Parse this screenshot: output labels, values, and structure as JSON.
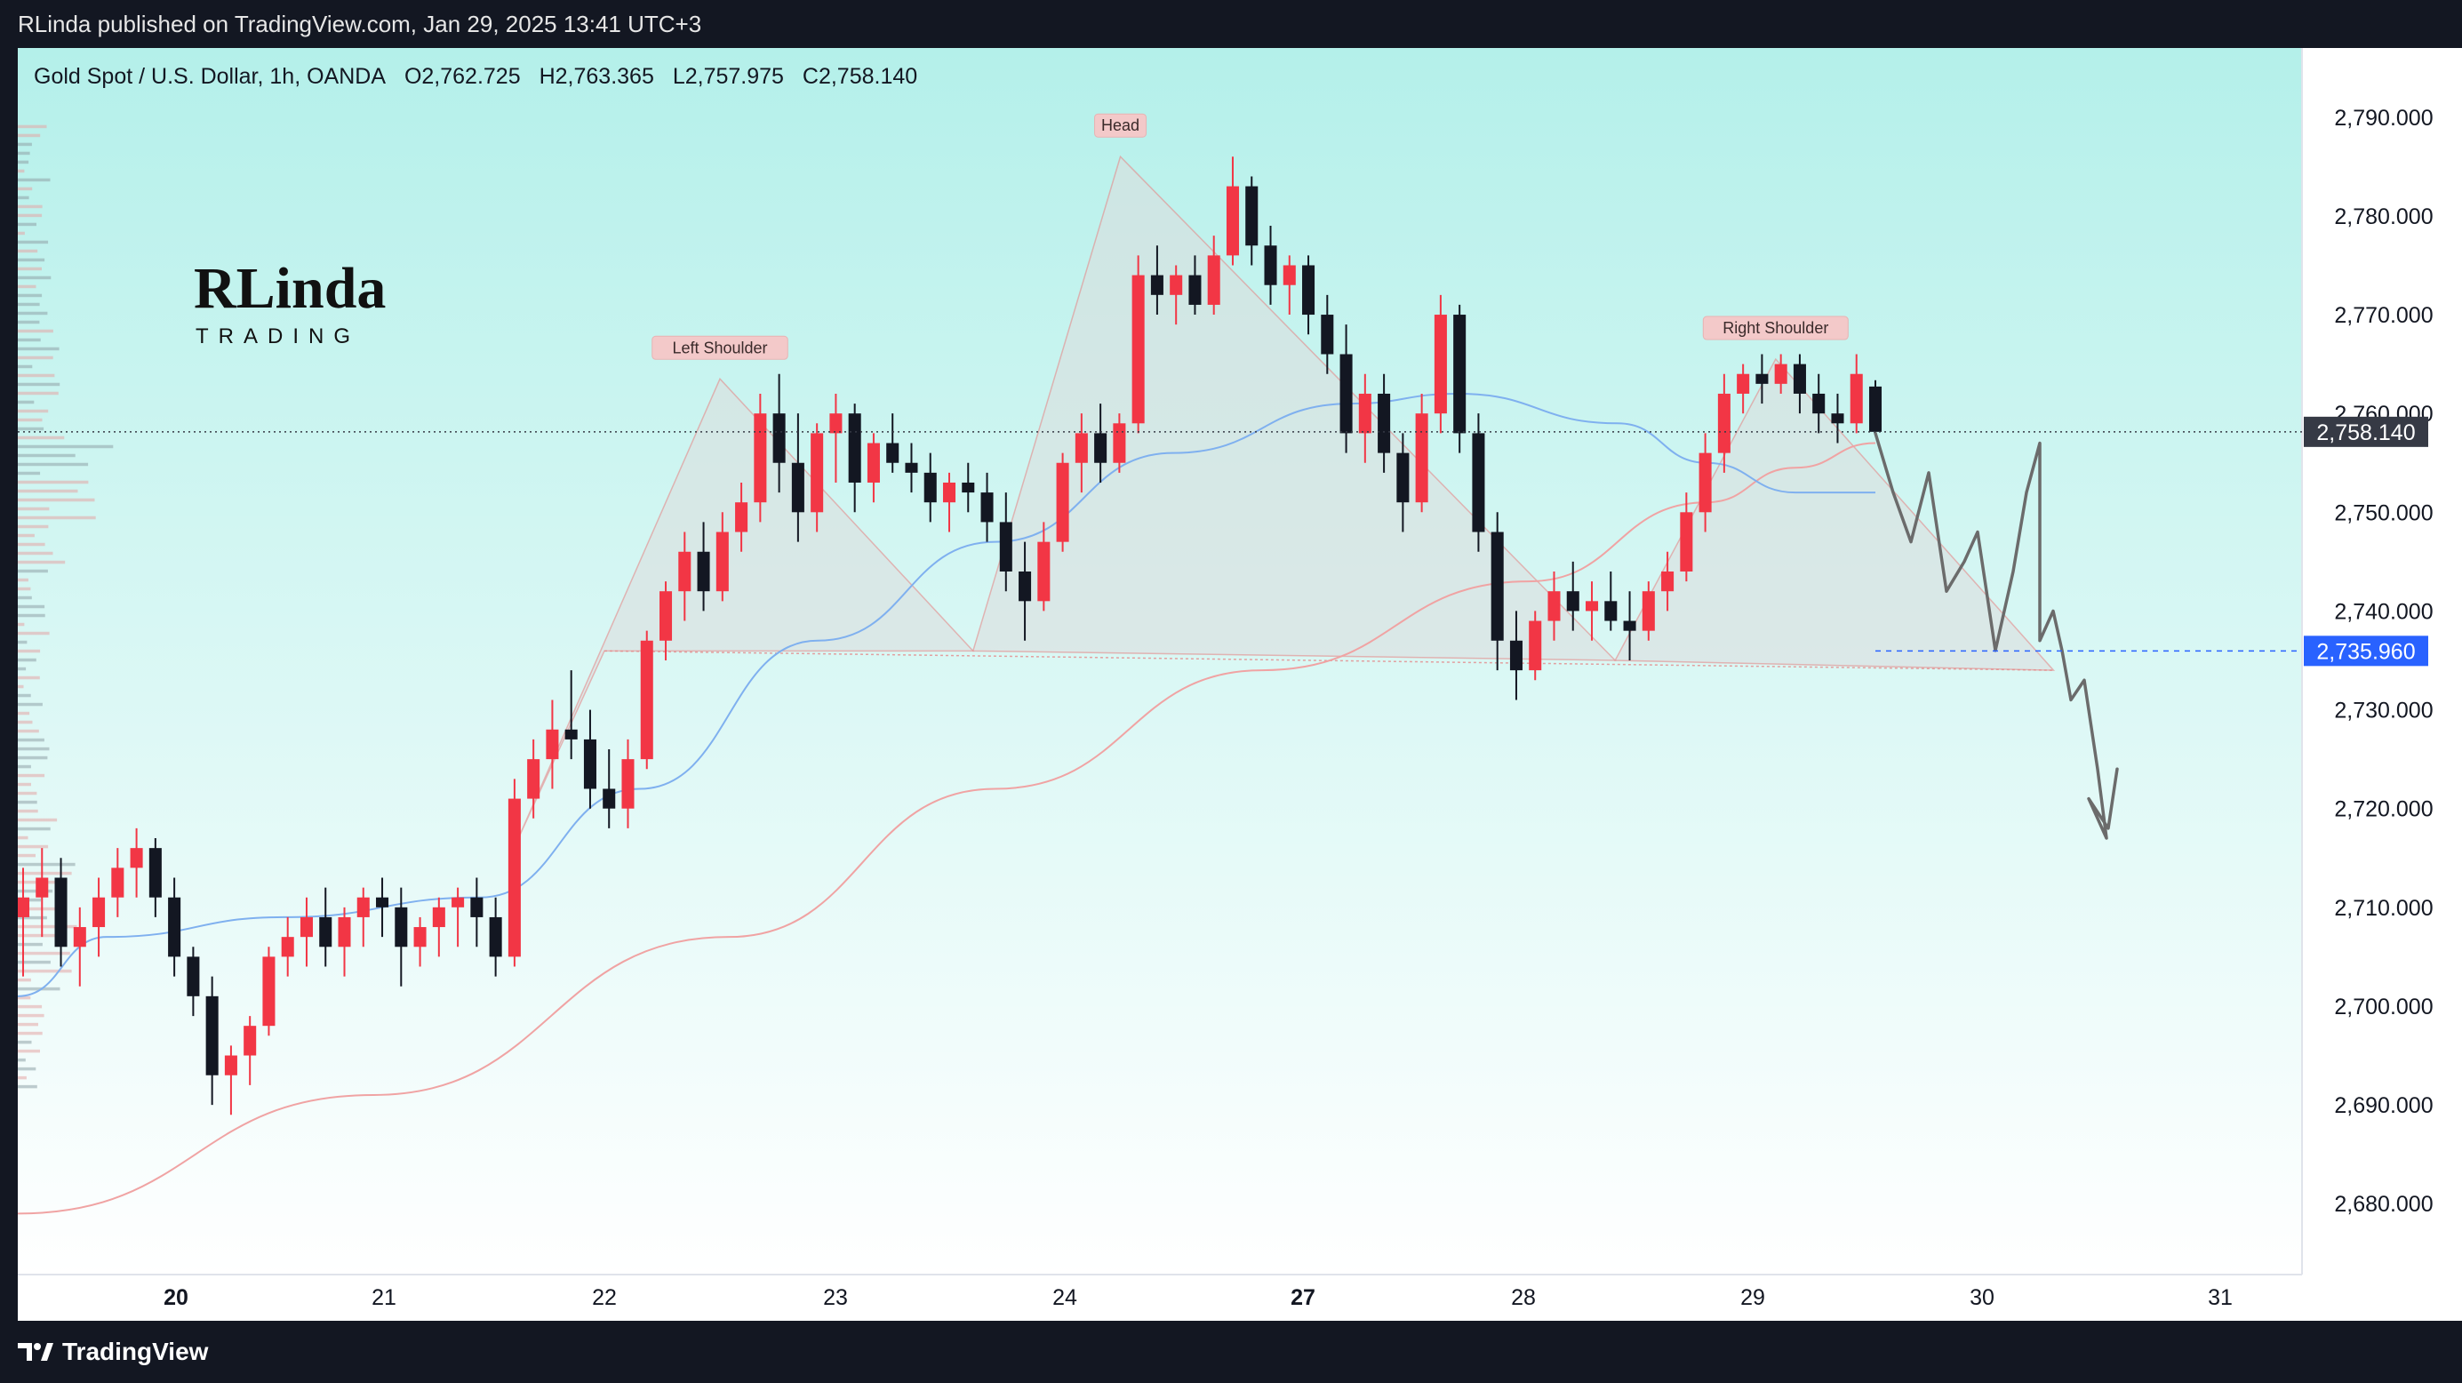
{
  "header": {
    "publisher": "RLinda published on TradingView.com, Jan 29, 2025 13:41 UTC+3"
  },
  "legend": {
    "symbol": "Gold Spot / U.S. Dollar, 1h, OANDA",
    "open": "O2,762.725",
    "high": "H2,763.365",
    "low": "L2,757.975",
    "close": "C2,758.140"
  },
  "brand": {
    "line1": "RLinda",
    "line2": "TRADING"
  },
  "footer": {
    "logo_text": "TradingView"
  },
  "colors": {
    "background_top": "#b4f0ea",
    "background_bottom": "#ffffff",
    "up": "#f23645",
    "down": "#131722",
    "ma_fast": "#7fb0ef",
    "ma_slow": "#f0a3a3",
    "pattern_fill": "#dcdcdc",
    "pattern_stroke": "#e58b8b",
    "forecast": "#6b6b6b",
    "last_price_tag": "#363a45",
    "neckline_tag": "#2962ff"
  },
  "chart_data": {
    "type": "candlestick",
    "pattern": "head-and-shoulders",
    "ylim": [
      2673,
      2797
    ],
    "yticks": [
      2680,
      2690,
      2700,
      2710,
      2720,
      2730,
      2740,
      2750,
      2760,
      2770,
      2780,
      2790
    ],
    "ytick_labels": [
      "2,680.000",
      "2,690.000",
      "2,700.000",
      "2,710.000",
      "2,720.000",
      "2,730.000",
      "2,740.000",
      "2,750.000",
      "2,760.000",
      "2,770.000",
      "2,780.000",
      "2,790.000"
    ],
    "x_dates": [
      "20",
      "21",
      "22",
      "23",
      "24",
      "27",
      "28",
      "29",
      "30",
      "31"
    ],
    "x_bold": [
      "20",
      "27"
    ],
    "last_price": 2758.14,
    "last_price_label": "2,758.140",
    "neckline": 2735.96,
    "neckline_label": "2,735.960",
    "annotations": [
      "Left Shoulder",
      "Head",
      "Right Shoulder"
    ],
    "pattern_points": [
      {
        "label": "",
        "x": "21.6",
        "y": 2716.5
      },
      {
        "label": "Left Shoulder",
        "x": "22.5",
        "y": 2763.5
      },
      {
        "label": "",
        "x": "23.6",
        "y": 2735.96
      },
      {
        "label": "Head",
        "x": "24.7",
        "y": 2786.0
      },
      {
        "label": "",
        "x": "28.4",
        "y": 2735.0
      },
      {
        "label": "Right Shoulder",
        "x": "29.1",
        "y": 2765.5
      },
      {
        "label": "",
        "x": "30.3",
        "y": 2734.0
      }
    ],
    "ohlc": [
      [
        2709,
        2714,
        2703,
        2711
      ],
      [
        2711,
        2716,
        2707,
        2713
      ],
      [
        2713,
        2715,
        2704,
        2706
      ],
      [
        2706,
        2710,
        2702,
        2708
      ],
      [
        2708,
        2713,
        2705,
        2711
      ],
      [
        2711,
        2716,
        2709,
        2714
      ],
      [
        2714,
        2718,
        2711,
        2716
      ],
      [
        2716,
        2717,
        2709,
        2711
      ],
      [
        2711,
        2713,
        2703,
        2705
      ],
      [
        2705,
        2706,
        2699,
        2701
      ],
      [
        2701,
        2703,
        2690,
        2693
      ],
      [
        2693,
        2696,
        2689,
        2695
      ],
      [
        2695,
        2699,
        2692,
        2698
      ],
      [
        2698,
        2706,
        2697,
        2705
      ],
      [
        2705,
        2709,
        2703,
        2707
      ],
      [
        2707,
        2711,
        2704,
        2709
      ],
      [
        2709,
        2712,
        2704,
        2706
      ],
      [
        2706,
        2710,
        2703,
        2709
      ],
      [
        2709,
        2712,
        2706,
        2711
      ],
      [
        2711,
        2713,
        2707,
        2710
      ],
      [
        2710,
        2712,
        2702,
        2706
      ],
      [
        2706,
        2709,
        2704,
        2708
      ],
      [
        2708,
        2711,
        2705,
        2710
      ],
      [
        2710,
        2712,
        2706,
        2711
      ],
      [
        2711,
        2713,
        2706,
        2709
      ],
      [
        2709,
        2711,
        2703,
        2705
      ],
      [
        2705,
        2723,
        2704,
        2721
      ],
      [
        2721,
        2727,
        2719,
        2725
      ],
      [
        2725,
        2731,
        2722,
        2728
      ],
      [
        2728,
        2734,
        2725,
        2727
      ],
      [
        2727,
        2730,
        2720,
        2722
      ],
      [
        2722,
        2726,
        2718,
        2720
      ],
      [
        2720,
        2727,
        2718,
        2725
      ],
      [
        2725,
        2738,
        2724,
        2737
      ],
      [
        2737,
        2743,
        2735,
        2742
      ],
      [
        2742,
        2748,
        2739,
        2746
      ],
      [
        2746,
        2749,
        2740,
        2742
      ],
      [
        2742,
        2750,
        2741,
        2748
      ],
      [
        2748,
        2753,
        2746,
        2751
      ],
      [
        2751,
        2762,
        2749,
        2760
      ],
      [
        2760,
        2764,
        2752,
        2755
      ],
      [
        2755,
        2760,
        2747,
        2750
      ],
      [
        2750,
        2759,
        2748,
        2758
      ],
      [
        2758,
        2762,
        2753,
        2760
      ],
      [
        2760,
        2761,
        2750,
        2753
      ],
      [
        2753,
        2758,
        2751,
        2757
      ],
      [
        2757,
        2760,
        2754,
        2755
      ],
      [
        2755,
        2757,
        2752,
        2754
      ],
      [
        2754,
        2756,
        2749,
        2751
      ],
      [
        2751,
        2754,
        2748,
        2753
      ],
      [
        2753,
        2755,
        2750,
        2752
      ],
      [
        2752,
        2754,
        2747,
        2749
      ],
      [
        2749,
        2752,
        2742,
        2744
      ],
      [
        2744,
        2747,
        2737,
        2741
      ],
      [
        2741,
        2749,
        2740,
        2747
      ],
      [
        2747,
        2756,
        2746,
        2755
      ],
      [
        2755,
        2760,
        2752,
        2758
      ],
      [
        2758,
        2761,
        2753,
        2755
      ],
      [
        2755,
        2760,
        2754,
        2759
      ],
      [
        2759,
        2776,
        2758,
        2774
      ],
      [
        2774,
        2777,
        2770,
        2772
      ],
      [
        2772,
        2775,
        2769,
        2774
      ],
      [
        2774,
        2776,
        2770,
        2771
      ],
      [
        2771,
        2778,
        2770,
        2776
      ],
      [
        2776,
        2786,
        2775,
        2783
      ],
      [
        2783,
        2784,
        2775,
        2777
      ],
      [
        2777,
        2779,
        2771,
        2773
      ],
      [
        2773,
        2776,
        2770,
        2775
      ],
      [
        2775,
        2776,
        2768,
        2770
      ],
      [
        2770,
        2772,
        2764,
        2766
      ],
      [
        2766,
        2769,
        2756,
        2758
      ],
      [
        2758,
        2764,
        2755,
        2762
      ],
      [
        2762,
        2764,
        2754,
        2756
      ],
      [
        2756,
        2758,
        2748,
        2751
      ],
      [
        2751,
        2762,
        2750,
        2760
      ],
      [
        2760,
        2772,
        2758,
        2770
      ],
      [
        2770,
        2771,
        2756,
        2758
      ],
      [
        2758,
        2760,
        2746,
        2748
      ],
      [
        2748,
        2750,
        2734,
        2737
      ],
      [
        2737,
        2740,
        2731,
        2734
      ],
      [
        2734,
        2740,
        2733,
        2739
      ],
      [
        2739,
        2744,
        2737,
        2742
      ],
      [
        2742,
        2745,
        2738,
        2740
      ],
      [
        2740,
        2743,
        2737,
        2741
      ],
      [
        2741,
        2744,
        2738,
        2739
      ],
      [
        2739,
        2742,
        2735,
        2738
      ],
      [
        2738,
        2743,
        2737,
        2742
      ],
      [
        2742,
        2746,
        2740,
        2744
      ],
      [
        2744,
        2752,
        2743,
        2750
      ],
      [
        2750,
        2758,
        2748,
        2756
      ],
      [
        2756,
        2764,
        2754,
        2762
      ],
      [
        2762,
        2765,
        2760,
        2764
      ],
      [
        2764,
        2766,
        2761,
        2763
      ],
      [
        2763,
        2766,
        2762,
        2765
      ],
      [
        2765,
        2766,
        2760,
        2762
      ],
      [
        2762,
        2764,
        2758,
        2760
      ],
      [
        2760,
        2762,
        2757,
        2759
      ],
      [
        2759,
        2766,
        2758,
        2764
      ],
      [
        2762.725,
        2763.365,
        2757.975,
        2758.14
      ]
    ]
  }
}
